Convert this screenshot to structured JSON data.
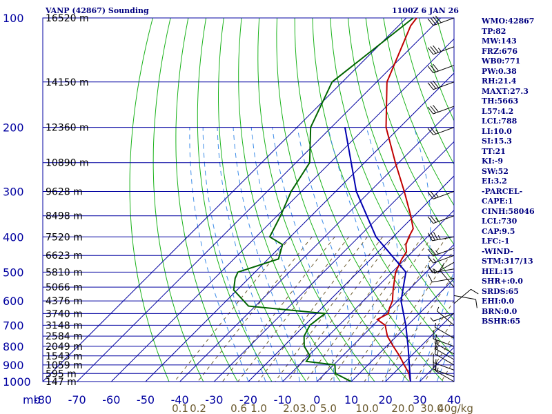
{
  "header": {
    "title": "VANP (42867) Sounding",
    "datetime": "1100Z  6 JAN 26"
  },
  "indices": [
    "WMO:42867",
    "TP:82",
    "MW:143",
    "FRZ:676",
    "WB0:771",
    "PW:0.38",
    "RH:21.4",
    "MAXT:27.3",
    "TH:5663",
    "L57:4.2",
    "LCL:788",
    "LI:10.0",
    "SI:15.3",
    "TT:21",
    "KI:-9",
    "SW:52",
    "EI:3.2",
    "-PARCEL-",
    "CAPE:1",
    "CINH:58046",
    "LCL:730",
    "CAP:9.5",
    "LFC:-1",
    "-WIND-",
    "STM:317/13",
    "HEL:15",
    "SHR+:0.0",
    "SRDS:65",
    "EHI:0.0",
    "BRN:0.0",
    "BSHR:65"
  ],
  "chart_data": {
    "type": "line",
    "title": "VANP (42867) Sounding",
    "xlabel": "",
    "ylabel": "mb",
    "x_ticks": [
      -80,
      -70,
      -60,
      -50,
      -40,
      -30,
      -20,
      -10,
      0,
      10,
      20,
      30,
      40
    ],
    "xlim": [
      -80,
      40
    ],
    "y_ticks": [
      100,
      200,
      300,
      400,
      500,
      600,
      700,
      800,
      900,
      1000
    ],
    "ylim": [
      100,
      1000
    ],
    "y_scale": "log",
    "height_labels": [
      {
        "p": 100,
        "h": "16520 m"
      },
      {
        "p": 150,
        "h": "14150 m"
      },
      {
        "p": 200,
        "h": "12360 m"
      },
      {
        "p": 250,
        "h": "10890 m"
      },
      {
        "p": 300,
        "h": "9628 m"
      },
      {
        "p": 350,
        "h": "8498 m"
      },
      {
        "p": 400,
        "h": "7520 m"
      },
      {
        "p": 450,
        "h": "6623 m"
      },
      {
        "p": 500,
        "h": "5810 m"
      },
      {
        "p": 550,
        "h": "5066 m"
      },
      {
        "p": 600,
        "h": "4376 m"
      },
      {
        "p": 650,
        "h": "3740 m"
      },
      {
        "p": 700,
        "h": "3148 m"
      },
      {
        "p": 750,
        "h": "2584 m"
      },
      {
        "p": 800,
        "h": "2049 m"
      },
      {
        "p": 850,
        "h": "1543 m"
      },
      {
        "p": 900,
        "h": "1059 m"
      },
      {
        "p": 950,
        "h": "595 m"
      },
      {
        "p": 1000,
        "h": "147 m"
      }
    ],
    "mixing_ratio_labels": [
      "0.1",
      "0.2",
      "0.6",
      "1.0",
      "2.0",
      "3.0",
      "5.0",
      "10.0",
      "20.0",
      "30.0",
      "40g/kg"
    ],
    "series": [
      {
        "color": "#c00000",
        "points": [
          [
            1000,
            27.3
          ],
          [
            950,
            24.5
          ],
          [
            900,
            20.6
          ],
          [
            850,
            16.6
          ],
          [
            800,
            12
          ],
          [
            750,
            7.3
          ],
          [
            700,
            3.5
          ],
          [
            675,
            -0.5
          ],
          [
            650,
            1
          ],
          [
            630,
            -0.2
          ],
          [
            600,
            -1.5
          ],
          [
            560,
            -4.5
          ],
          [
            500,
            -9
          ],
          [
            460,
            -11
          ],
          [
            440,
            -11.7
          ],
          [
            420,
            -14
          ],
          [
            400,
            -15.4
          ],
          [
            380,
            -16.5
          ],
          [
            350,
            -21
          ],
          [
            300,
            -30
          ],
          [
            250,
            -41
          ],
          [
            200,
            -54
          ],
          [
            150,
            -67
          ],
          [
            105,
            -76.5
          ],
          [
            100,
            -77
          ]
        ]
      },
      {
        "color": "#006400",
        "points": [
          [
            1000,
            10
          ],
          [
            950,
            3
          ],
          [
            900,
            0.4
          ],
          [
            880,
            -9
          ],
          [
            850,
            -9.5
          ],
          [
            800,
            -14
          ],
          [
            750,
            -17
          ],
          [
            700,
            -18.5
          ],
          [
            650,
            -17.5
          ],
          [
            620,
            -42
          ],
          [
            560,
            -51
          ],
          [
            520,
            -54
          ],
          [
            500,
            -55
          ],
          [
            460,
            -47
          ],
          [
            420,
            -50
          ],
          [
            400,
            -56
          ],
          [
            350,
            -59
          ],
          [
            300,
            -63
          ],
          [
            250,
            -66
          ],
          [
            200,
            -76
          ],
          [
            150,
            -83
          ],
          [
            100,
            -78
          ]
        ]
      },
      {
        "color": "#0000b0",
        "points": [
          [
            1000,
            27.3
          ],
          [
            800,
            16.3
          ],
          [
            700,
            9.5
          ],
          [
            600,
            1
          ],
          [
            500,
            -6
          ],
          [
            400,
            -25
          ],
          [
            300,
            -44
          ],
          [
            200,
            -66
          ]
        ]
      }
    ],
    "winds": [
      {
        "p": 1000,
        "dir": 300,
        "spd": 15
      },
      {
        "p": 970,
        "dir": 290,
        "spd": 15
      },
      {
        "p": 930,
        "dir": 290,
        "spd": 15
      },
      {
        "p": 900,
        "dir": 300,
        "spd": 15
      },
      {
        "p": 870,
        "dir": 300,
        "spd": 15
      },
      {
        "p": 840,
        "dir": 300,
        "spd": 15
      },
      {
        "p": 800,
        "dir": 290,
        "spd": 10
      },
      {
        "p": 760,
        "dir": 300,
        "spd": 5
      },
      {
        "p": 700,
        "dir": 310,
        "spd": 5
      },
      {
        "p": 650,
        "dir": 250,
        "spd": 5
      },
      {
        "p": 610,
        "dir": 50,
        "spd": 10
      },
      {
        "p": 580,
        "dir": 100,
        "spd": 10
      },
      {
        "p": 550,
        "dir": 320,
        "spd": 10
      },
      {
        "p": 520,
        "dir": 260,
        "spd": 10
      },
      {
        "p": 490,
        "dir": 260,
        "spd": 15
      },
      {
        "p": 470,
        "dir": 240,
        "spd": 15
      },
      {
        "p": 450,
        "dir": 250,
        "spd": 15
      },
      {
        "p": 430,
        "dir": 250,
        "spd": 25
      },
      {
        "p": 400,
        "dir": 260,
        "spd": 35
      },
      {
        "p": 350,
        "dir": 250,
        "spd": 25
      },
      {
        "p": 300,
        "dir": 250,
        "spd": 25
      },
      {
        "p": 200,
        "dir": 250,
        "spd": 25
      },
      {
        "p": 175,
        "dir": 250,
        "spd": 30
      },
      {
        "p": 150,
        "dir": 250,
        "spd": 30
      },
      {
        "p": 135,
        "dir": 250,
        "spd": 30
      },
      {
        "p": 120,
        "dir": 250,
        "spd": 35
      },
      {
        "p": 100,
        "dir": 250,
        "spd": 40
      }
    ],
    "grid": true
  }
}
